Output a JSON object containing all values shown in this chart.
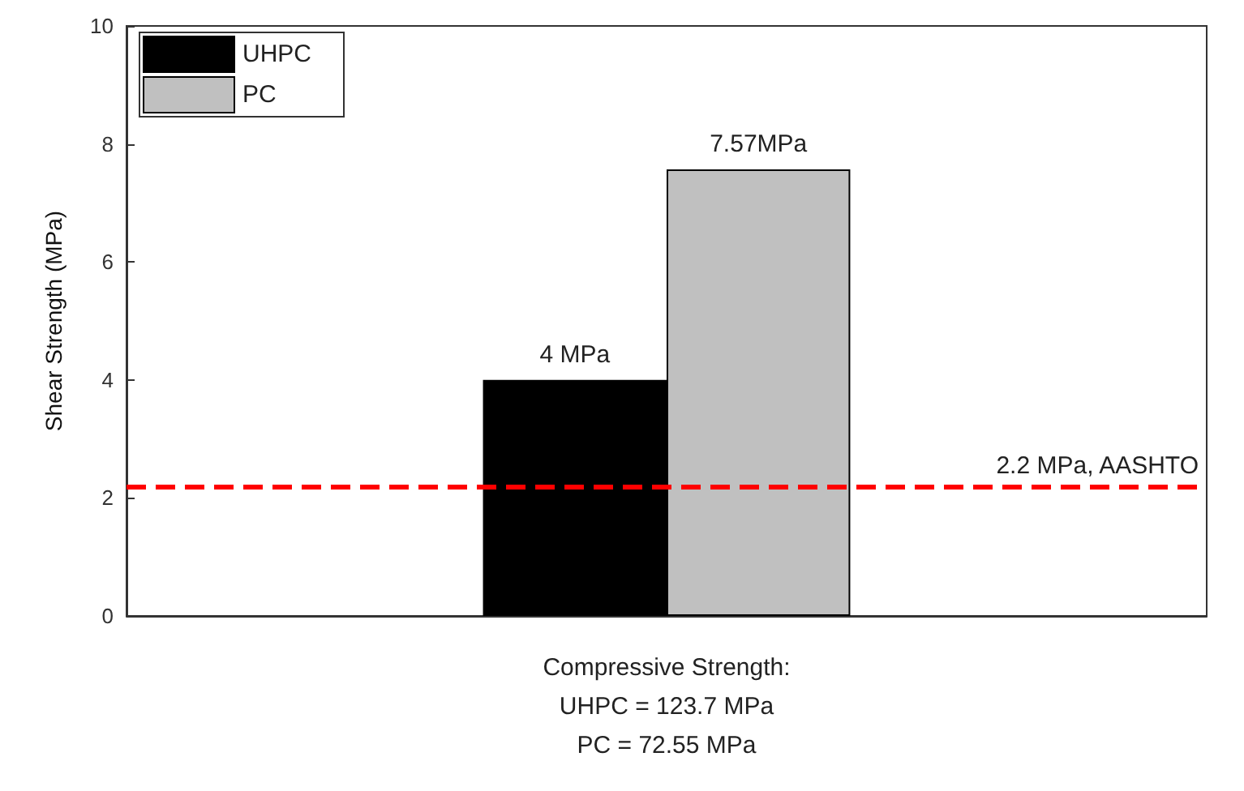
{
  "chart_data": {
    "type": "bar",
    "categories": [
      null
    ],
    "xlabel": "Compressive Strength:\nUHPC = 123.7 MPa\nPC = 72.55 MPa",
    "ylabel": "Shear Strength (MPa)",
    "series": [
      {
        "name": "UHPC",
        "color": "#000000",
        "values": [
          4
        ],
        "value_labels": [
          "4 MPa"
        ]
      },
      {
        "name": "PC",
        "color": "#c0c0c0",
        "values": [
          7.57
        ],
        "value_labels": [
          "7.57MPa"
        ]
      }
    ],
    "ylim": [
      0,
      10
    ],
    "yticks": [
      0,
      2,
      4,
      6,
      8,
      10
    ],
    "grid": false,
    "legend": "top left",
    "ref_lines": [
      {
        "axis": "y",
        "value": 2.2,
        "label": "2.2 MPa, AASHTO",
        "color": "#ff0000",
        "line_style": "dashed"
      }
    ]
  }
}
